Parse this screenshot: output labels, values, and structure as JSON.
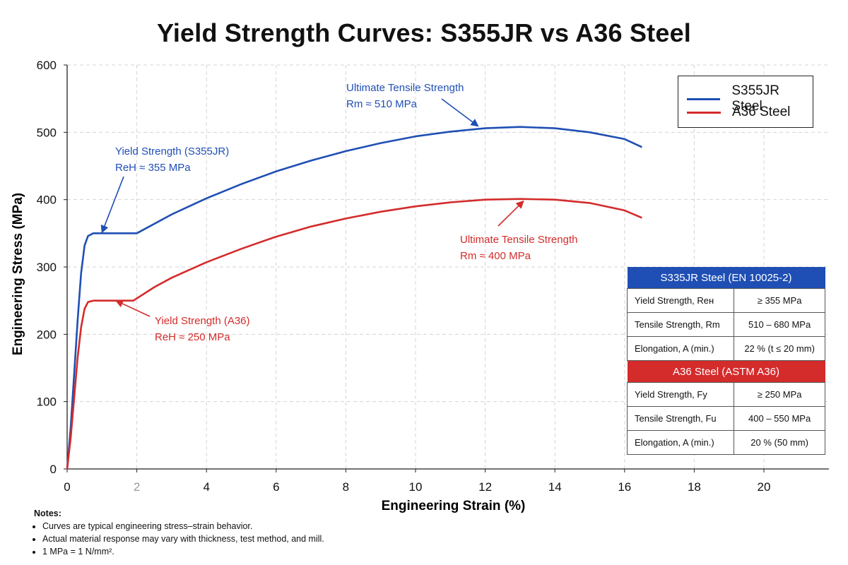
{
  "title": "Yield Strength Curves: S355JR vs A36 Steel",
  "chart_data": {
    "type": "line",
    "xlabel": "Engineering Strain (%)",
    "ylabel": "Engineering Stress (MPa)",
    "xlim": [
      0,
      22
    ],
    "ylim": [
      0,
      600
    ],
    "xticks": [
      "0",
      "2",
      "4",
      "6",
      "8",
      "10",
      "12",
      "14",
      "16",
      "18",
      "20"
    ],
    "yticks": [
      "0",
      "100",
      "200",
      "300",
      "400",
      "500",
      "600"
    ],
    "grid": true,
    "legend_position": "top-right",
    "series": [
      {
        "name": "S355JR Steel",
        "color": "#1f4fb4",
        "x": [
          0,
          0.1,
          0.2,
          0.3,
          0.4,
          0.5,
          0.6,
          0.75,
          2.0,
          3,
          4,
          5,
          6,
          7,
          8,
          9,
          10,
          11,
          12,
          13,
          14,
          15,
          16,
          16.5
        ],
        "y": [
          0,
          60,
          140,
          220,
          290,
          332,
          346,
          350,
          350,
          378,
          402,
          423,
          442,
          458,
          472,
          484,
          494,
          501,
          506,
          508,
          506,
          500,
          490,
          478
        ]
      },
      {
        "name": "A36 Steel",
        "color": "#d42b2b",
        "x": [
          0,
          0.1,
          0.2,
          0.3,
          0.4,
          0.5,
          0.6,
          0.75,
          1.9,
          2.5,
          3,
          4,
          5,
          6,
          7,
          8,
          9,
          10,
          11,
          12,
          13,
          14,
          15,
          16,
          16.5
        ],
        "y": [
          0,
          45,
          105,
          165,
          210,
          238,
          248,
          250,
          250,
          270,
          284,
          307,
          327,
          345,
          360,
          372,
          382,
          390,
          396,
          400,
          401,
          400,
          395,
          384,
          373
        ]
      }
    ],
    "annotations": [
      {
        "lines": [
          "Yield Strength (S355JR)",
          "ReH ≈ 355 MPa"
        ],
        "color": "#1f4fb4",
        "arrow_to": [
          1.0,
          350
        ]
      },
      {
        "lines": [
          "Ultimate Tensile Strength",
          "Rm ≈ 510 MPa"
        ],
        "color": "#1f4fb4",
        "arrow_to": [
          11.8,
          508
        ]
      },
      {
        "lines": [
          "Yield Strength (A36)",
          "ReH ≈ 250 MPa"
        ],
        "color": "#d42b2b",
        "arrow_to": [
          1.4,
          250
        ]
      },
      {
        "lines": [
          "Ultimate Tensile Strength",
          "Rm ≈ 400 MPa"
        ],
        "color": "#d42b2b",
        "arrow_to": [
          13.1,
          401
        ]
      }
    ]
  },
  "table": {
    "sections": [
      {
        "header": "S335JR Steel (EN 10025-2)",
        "color": "#1f4fb4",
        "rows": [
          [
            "Yield Strength, Reн",
            "≥ 355 MPa"
          ],
          [
            "Tensile Strength, Rm",
            "510 – 680 MPa"
          ],
          [
            "Elongation, A (min.)",
            "22 % (t ≤ 20 mm)"
          ]
        ]
      },
      {
        "header": "A36 Steel (ASTM A36)",
        "color": "#d42b2b",
        "rows": [
          [
            "Yield Strength, Fy",
            "≥ 250 MPa"
          ],
          [
            "Tensile Strength, Fu",
            "400 – 550 MPa"
          ],
          [
            "Elongation, A (min.)",
            "20 % (50 mm)"
          ]
        ]
      }
    ]
  },
  "notes": {
    "heading": "Notes:",
    "items": [
      "Curves are typical engineering stress–strain behavior.",
      "Actual material response may vary with thickness, test method, and mill.",
      "1 MPa = 1 N/mm²."
    ]
  }
}
